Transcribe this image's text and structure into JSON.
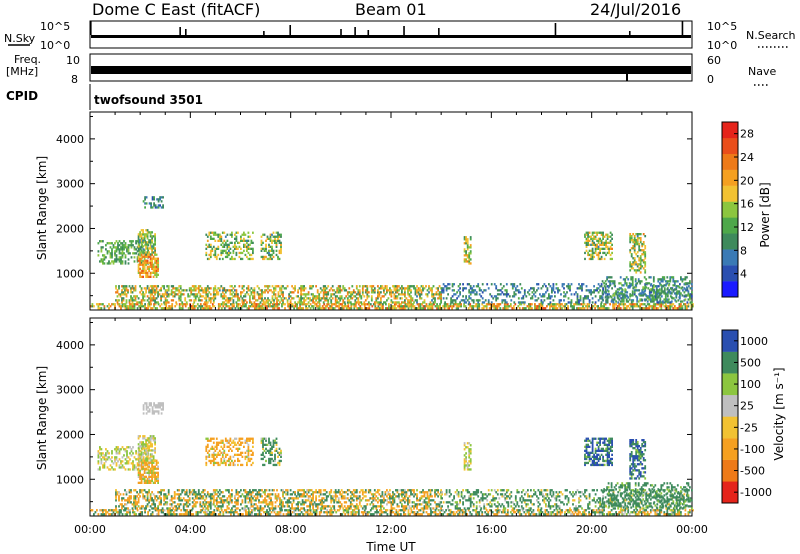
{
  "header": {
    "title": "Dome C East (fitACF)",
    "beam": "Beam 01",
    "date": "24/Jul/2016"
  },
  "status_panels": {
    "nsky_label": "N.Sky",
    "nsky_ticks": [
      "10^5",
      "10^0"
    ],
    "nsearch_label": "N.Search",
    "nsearch_ticks": [
      "10^5",
      "10^0"
    ],
    "freq_label_1": "Freq.",
    "freq_label_2": "[MHz]",
    "freq_ticks": [
      "10",
      "8"
    ],
    "nave_label": "Nave",
    "nave_ticks": [
      "60",
      "0"
    ],
    "cpid_label": "CPID",
    "cpid_value": "twofsound 3501"
  },
  "colors": {
    "power_scale": [
      "#1a1aff",
      "#2a4fb0",
      "#3a7ab5",
      "#3e8a5c",
      "#4ea84a",
      "#8cc63f",
      "#f2c232",
      "#f5a020",
      "#ee7a18",
      "#e94e1b",
      "#e5241b"
    ],
    "velocity_scale": [
      "#e5241b",
      "#ee7a18",
      "#f5a020",
      "#f2c232",
      "#bfbfbf",
      "#8cc63f",
      "#3e8a5c",
      "#2a4fb0"
    ]
  },
  "chart_data": [
    {
      "type": "heatmap",
      "name": "power",
      "xlabel": "",
      "ylabel": "Slant Range [km]",
      "xlim": [
        0,
        24
      ],
      "ylim": [
        180,
        4600
      ],
      "x_tick_values": [
        0,
        4,
        8,
        12,
        16,
        20,
        24
      ],
      "y_tick_labels": [
        "1000",
        "2000",
        "3000",
        "4000"
      ],
      "y_tick_values": [
        1000,
        2000,
        3000,
        4000
      ],
      "colorbar": {
        "label": "Power [dB]",
        "tick_labels": [
          "4",
          "8",
          "12",
          "16",
          "20",
          "24",
          "28"
        ],
        "tick_values": [
          4,
          8,
          12,
          16,
          20,
          24,
          28
        ],
        "range": [
          0,
          30
        ]
      },
      "patches": [
        {
          "t": [
            0.0,
            24.0
          ],
          "r": [
            200,
            330
          ],
          "density": 0.65,
          "value": [
            10,
            26
          ]
        },
        {
          "t": [
            1.0,
            14.0
          ],
          "r": [
            330,
            700
          ],
          "density": 0.5,
          "value": [
            8,
            24
          ]
        },
        {
          "t": [
            14.0,
            24.0
          ],
          "r": [
            330,
            750
          ],
          "density": 0.3,
          "value": [
            4,
            12
          ]
        },
        {
          "t": [
            0.3,
            2.3
          ],
          "r": [
            1200,
            1700
          ],
          "density": 0.4,
          "value": [
            8,
            16
          ]
        },
        {
          "t": [
            1.9,
            2.7
          ],
          "r": [
            900,
            1400
          ],
          "density": 0.7,
          "value": [
            14,
            26
          ]
        },
        {
          "t": [
            1.9,
            2.6
          ],
          "r": [
            1400,
            1950
          ],
          "density": 0.6,
          "value": [
            8,
            20
          ]
        },
        {
          "t": [
            2.1,
            2.9
          ],
          "r": [
            2450,
            2700
          ],
          "density": 0.5,
          "value": [
            4,
            12
          ]
        },
        {
          "t": [
            4.6,
            6.5
          ],
          "r": [
            1300,
            1900
          ],
          "density": 0.45,
          "value": [
            8,
            20
          ]
        },
        {
          "t": [
            6.8,
            7.6
          ],
          "r": [
            1300,
            1900
          ],
          "density": 0.45,
          "value": [
            8,
            20
          ]
        },
        {
          "t": [
            14.9,
            15.2
          ],
          "r": [
            1200,
            1800
          ],
          "density": 0.5,
          "value": [
            10,
            22
          ]
        },
        {
          "t": [
            19.7,
            20.8
          ],
          "r": [
            1300,
            1900
          ],
          "density": 0.55,
          "value": [
            8,
            22
          ]
        },
        {
          "t": [
            21.5,
            22.1
          ],
          "r": [
            1000,
            1900
          ],
          "density": 0.55,
          "value": [
            8,
            22
          ]
        },
        {
          "t": [
            20.4,
            23.9
          ],
          "r": [
            350,
            900
          ],
          "density": 0.35,
          "value": [
            6,
            14
          ]
        }
      ]
    },
    {
      "type": "heatmap",
      "name": "velocity",
      "xlabel": "Time UT",
      "ylabel": "Slant Range [km]",
      "xlim": [
        0,
        24
      ],
      "ylim": [
        180,
        4600
      ],
      "x_tick_labels": [
        "00:00",
        "04:00",
        "08:00",
        "12:00",
        "16:00",
        "20:00",
        "00:00"
      ],
      "x_tick_values": [
        0,
        4,
        8,
        12,
        16,
        20,
        24
      ],
      "y_tick_labels": [
        "1000",
        "2000",
        "3000",
        "4000"
      ],
      "y_tick_values": [
        1000,
        2000,
        3000,
        4000
      ],
      "colorbar": {
        "label": "Velocity [m s⁻¹]",
        "tick_labels": [
          "-1000",
          "-500",
          "-100",
          "-25",
          "25",
          "100",
          "500",
          "1000"
        ],
        "tick_values": [
          -1000,
          -500,
          -100,
          -25,
          25,
          100,
          500,
          1000
        ]
      },
      "patches": [
        {
          "t": [
            0.0,
            24.0
          ],
          "r": [
            200,
            330
          ],
          "density": 0.55,
          "value": [
            -500,
            500
          ]
        },
        {
          "t": [
            1.0,
            14.0
          ],
          "r": [
            330,
            750
          ],
          "density": 0.5,
          "value": [
            -500,
            500
          ]
        },
        {
          "t": [
            14.0,
            24.0
          ],
          "r": [
            330,
            750
          ],
          "density": 0.3,
          "value": [
            -100,
            500
          ]
        },
        {
          "t": [
            0.3,
            2.3
          ],
          "r": [
            1200,
            1700
          ],
          "density": 0.45,
          "value": [
            -100,
            100
          ]
        },
        {
          "t": [
            1.9,
            2.7
          ],
          "r": [
            900,
            1400
          ],
          "density": 0.7,
          "value": [
            -500,
            100
          ]
        },
        {
          "t": [
            1.9,
            2.6
          ],
          "r": [
            1400,
            1950
          ],
          "density": 0.6,
          "value": [
            -100,
            100
          ]
        },
        {
          "t": [
            2.1,
            2.9
          ],
          "r": [
            2450,
            2700
          ],
          "density": 0.5,
          "value": [
            -25,
            25
          ]
        },
        {
          "t": [
            4.6,
            6.5
          ],
          "r": [
            1300,
            1900
          ],
          "density": 0.45,
          "value": [
            -500,
            100
          ]
        },
        {
          "t": [
            6.8,
            7.6
          ],
          "r": [
            1300,
            1900
          ],
          "density": 0.45,
          "value": [
            -100,
            500
          ]
        },
        {
          "t": [
            14.9,
            15.2
          ],
          "r": [
            1200,
            1800
          ],
          "density": 0.5,
          "value": [
            -100,
            100
          ]
        },
        {
          "t": [
            19.7,
            20.8
          ],
          "r": [
            1300,
            1900
          ],
          "density": 0.55,
          "value": [
            25,
            1000
          ]
        },
        {
          "t": [
            21.5,
            22.1
          ],
          "r": [
            1000,
            1900
          ],
          "density": 0.55,
          "value": [
            25,
            1000
          ]
        },
        {
          "t": [
            20.4,
            23.9
          ],
          "r": [
            350,
            900
          ],
          "density": 0.35,
          "value": [
            25,
            500
          ]
        }
      ]
    }
  ]
}
